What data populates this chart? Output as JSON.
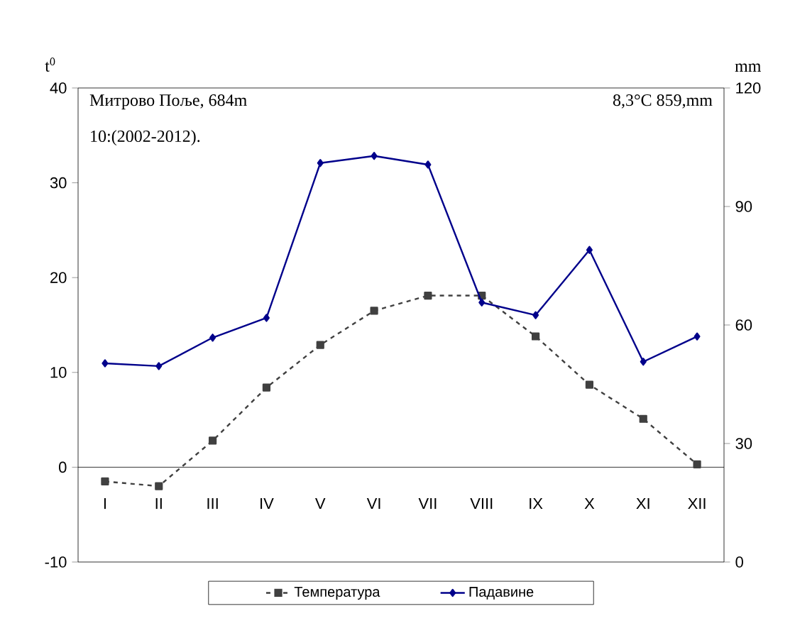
{
  "chart_data": {
    "type": "line",
    "categories": [
      "I",
      "II",
      "III",
      "IV",
      "V",
      "VI",
      "VII",
      "VIII",
      "IX",
      "X",
      "XI",
      "XII"
    ],
    "ylabel": "t$^{0}$",
    "y2label": "mm",
    "ylim": [
      -10,
      40
    ],
    "yticks": [
      -10,
      0,
      10,
      20,
      30,
      40
    ],
    "y2lim": [
      0,
      120
    ],
    "y2ticks": [
      0,
      30,
      60,
      90,
      120
    ],
    "series": [
      {
        "name": "Температура",
        "color": "#404040",
        "line_style": "dashed",
        "marker": "square",
        "values": [
          -1.5,
          -2.0,
          2.8,
          8.4,
          12.9,
          16.5,
          18.1,
          18.1,
          13.8,
          8.7,
          5.1,
          0.3
        ]
      },
      {
        "name": "Падавине",
        "color": "#00008b",
        "line_style": "solid",
        "marker": "diamond",
        "axis": "y2",
        "values": [
          50.3,
          49.6,
          56.8,
          61.8,
          101,
          102.8,
          100.6,
          65.7,
          62.5,
          79,
          50.7,
          57.1
        ]
      }
    ],
    "annotations": [
      "Митрово Поље, 684m",
      "8,3°C   859,mm",
      "10:(2002-2012)."
    ],
    "legend": "bottom",
    "grid": false
  }
}
